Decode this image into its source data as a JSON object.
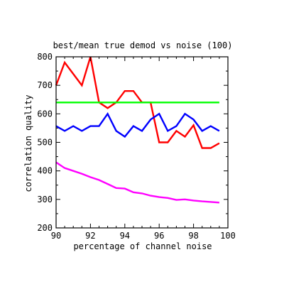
{
  "chart_data": {
    "type": "line",
    "title": "best/mean true demod vs noise (100)",
    "xlabel": "percentage of channel noise",
    "ylabel": "correlation quality",
    "xlim": [
      90,
      100
    ],
    "ylim": [
      200,
      800
    ],
    "xticks": [
      90,
      92,
      94,
      96,
      98,
      100
    ],
    "yticks": [
      200,
      300,
      400,
      500,
      600,
      700,
      800
    ],
    "x_minor_step": 0.5,
    "y_minor_step": 50,
    "grid": false,
    "series": [
      {
        "color": "#ff0000",
        "x": [
          90.0,
          90.5,
          91.0,
          91.5,
          92.0,
          92.5,
          93.0,
          93.5,
          94.0,
          94.5,
          95.0,
          95.5,
          96.0,
          96.5,
          97.0,
          97.5,
          98.0,
          98.5,
          99.0,
          99.5
        ],
        "y": [
          700,
          780,
          740,
          700,
          800,
          640,
          620,
          640,
          680,
          680,
          640,
          640,
          500,
          500,
          540,
          520,
          560,
          480,
          480,
          497
        ]
      },
      {
        "color": "#00ff00",
        "x": [
          90.0,
          99.5
        ],
        "y": [
          640,
          640
        ]
      },
      {
        "color": "#0000ff",
        "x": [
          90.0,
          90.5,
          91.0,
          91.5,
          92.0,
          92.5,
          93.0,
          93.5,
          94.0,
          94.5,
          95.0,
          95.5,
          96.0,
          96.5,
          97.0,
          97.5,
          98.0,
          98.5,
          99.0,
          99.5
        ],
        "y": [
          557,
          540,
          557,
          540,
          557,
          557,
          600,
          540,
          520,
          557,
          540,
          580,
          600,
          540,
          557,
          600,
          580,
          540,
          557,
          540
        ]
      },
      {
        "color": "#ff00ff",
        "x": [
          90.0,
          90.5,
          91.0,
          91.5,
          92.0,
          92.5,
          93.0,
          93.5,
          94.0,
          94.5,
          95.0,
          95.5,
          96.0,
          96.5,
          97.0,
          97.5,
          98.0,
          98.5,
          99.0,
          99.5
        ],
        "y": [
          430,
          410,
          400,
          390,
          378,
          368,
          354,
          340,
          338,
          325,
          321,
          313,
          308,
          305,
          298,
          300,
          296,
          293,
          291,
          289
        ]
      }
    ]
  }
}
